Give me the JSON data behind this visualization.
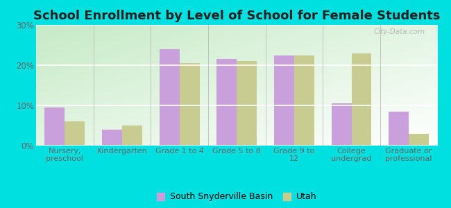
{
  "title": "School Enrollment by Level of School for Female Students",
  "categories": [
    "Nursery,\npreschool",
    "Kindergarten",
    "Grade 1 to 4",
    "Grade 5 to 8",
    "Grade 9 to\n12",
    "College\nundergrad",
    "Graduate or\nprofessional"
  ],
  "south_snyderville": [
    9.5,
    4.0,
    24.0,
    21.5,
    22.5,
    10.5,
    8.5
  ],
  "utah": [
    6.0,
    5.0,
    20.5,
    21.0,
    22.5,
    23.0,
    3.0
  ],
  "color_ssb": "#c9a0dc",
  "color_utah": "#c8cc90",
  "background_outer": "#00e0e0",
  "ylim": [
    0,
    30
  ],
  "yticks": [
    0,
    10,
    20,
    30
  ],
  "ytick_labels": [
    "0%",
    "10%",
    "20%",
    "30%"
  ],
  "legend_ssb": "South Snyderville Basin",
  "legend_utah": "Utah",
  "watermark": "City-Data.com",
  "bar_width": 0.35,
  "title_fontsize": 13,
  "tick_fontsize": 8.5,
  "label_fontsize": 8
}
